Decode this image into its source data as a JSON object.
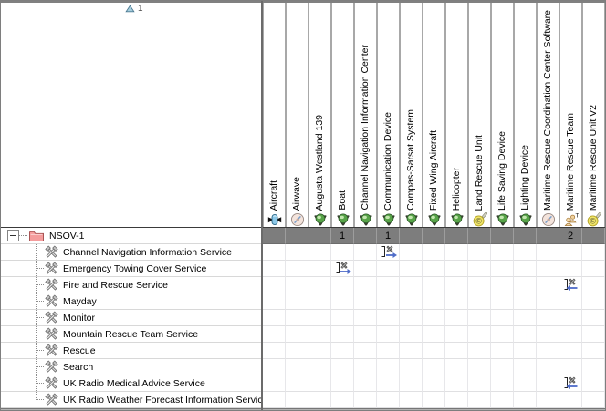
{
  "sort": {
    "icon": "sort-ascending-icon",
    "order": "1"
  },
  "matrix": {
    "columns": [
      {
        "label": "Aircraft",
        "icon": "aircraft-icon"
      },
      {
        "label": "Airwave",
        "icon": "software-icon"
      },
      {
        "label": "Augusta Westland 139",
        "icon": "resource-icon"
      },
      {
        "label": "Boat",
        "icon": "resource-icon"
      },
      {
        "label": "Channel Navigation Information Center",
        "icon": "resource-icon"
      },
      {
        "label": "Communication Device",
        "icon": "resource-icon"
      },
      {
        "label": "Compas-Sarsat System",
        "icon": "resource-icon"
      },
      {
        "label": "Fixed Wing Aircraft",
        "icon": "resource-icon"
      },
      {
        "label": "Helicopter",
        "icon": "resource-icon"
      },
      {
        "label": "Land Rescue Unit",
        "icon": "capability-configuration-icon"
      },
      {
        "label": "Life Saving Device",
        "icon": "resource-icon"
      },
      {
        "label": "Lighting Device",
        "icon": "resource-icon"
      },
      {
        "label": "Maritime Rescue Coordination Center Software",
        "icon": "software-icon"
      },
      {
        "label": "Maritime Rescue Team",
        "icon": "organization-icon"
      },
      {
        "label": "Maritime Rescue Unit V2",
        "icon": "capability-configuration-icon"
      }
    ],
    "root_row": {
      "label": "NSOV-1",
      "icon": "folder-icon",
      "expand_state": "expanded",
      "totals": [
        "",
        "",
        "",
        "1",
        "",
        "1",
        "",
        "",
        "",
        "",
        "",
        "",
        "",
        "2",
        ""
      ]
    },
    "rows": [
      {
        "label": "Channel Navigation Information Service",
        "icon": "service-icon",
        "cells": [
          "",
          "",
          "",
          "",
          "",
          "relationship-right-icon",
          "",
          "",
          "",
          "",
          "",
          "",
          "",
          "",
          ""
        ]
      },
      {
        "label": "Emergency Towing Cover Service",
        "icon": "service-icon",
        "cells": [
          "",
          "",
          "",
          "relationship-right-icon",
          "",
          "",
          "",
          "",
          "",
          "",
          "",
          "",
          "",
          "",
          ""
        ]
      },
      {
        "label": "Fire and Rescue Service",
        "icon": "service-icon",
        "cells": [
          "",
          "",
          "",
          "",
          "",
          "",
          "",
          "",
          "",
          "",
          "",
          "",
          "",
          "relationship-left-icon",
          ""
        ]
      },
      {
        "label": "Mayday",
        "icon": "service-icon",
        "cells": [
          "",
          "",
          "",
          "",
          "",
          "",
          "",
          "",
          "",
          "",
          "",
          "",
          "",
          "",
          ""
        ]
      },
      {
        "label": "Monitor",
        "icon": "service-icon",
        "cells": [
          "",
          "",
          "",
          "",
          "",
          "",
          "",
          "",
          "",
          "",
          "",
          "",
          "",
          "",
          ""
        ]
      },
      {
        "label": "Mountain Rescue Team Service",
        "icon": "service-icon",
        "cells": [
          "",
          "",
          "",
          "",
          "",
          "",
          "",
          "",
          "",
          "",
          "",
          "",
          "",
          "",
          ""
        ]
      },
      {
        "label": "Rescue",
        "icon": "service-icon",
        "cells": [
          "",
          "",
          "",
          "",
          "",
          "",
          "",
          "",
          "",
          "",
          "",
          "",
          "",
          "",
          ""
        ]
      },
      {
        "label": "Search",
        "icon": "service-icon",
        "cells": [
          "",
          "",
          "",
          "",
          "",
          "",
          "",
          "",
          "",
          "",
          "",
          "",
          "",
          "",
          ""
        ]
      },
      {
        "label": "UK Radio Medical Advice Service",
        "icon": "service-icon",
        "cells": [
          "",
          "",
          "",
          "",
          "",
          "",
          "",
          "",
          "",
          "",
          "",
          "",
          "",
          "relationship-left-icon",
          ""
        ]
      },
      {
        "label": "UK Radio Weather Forecast Information Service",
        "icon": "service-icon",
        "cells": [
          "",
          "",
          "",
          "",
          "",
          "",
          "",
          "",
          "",
          "",
          "",
          "",
          "",
          "",
          ""
        ]
      }
    ]
  }
}
